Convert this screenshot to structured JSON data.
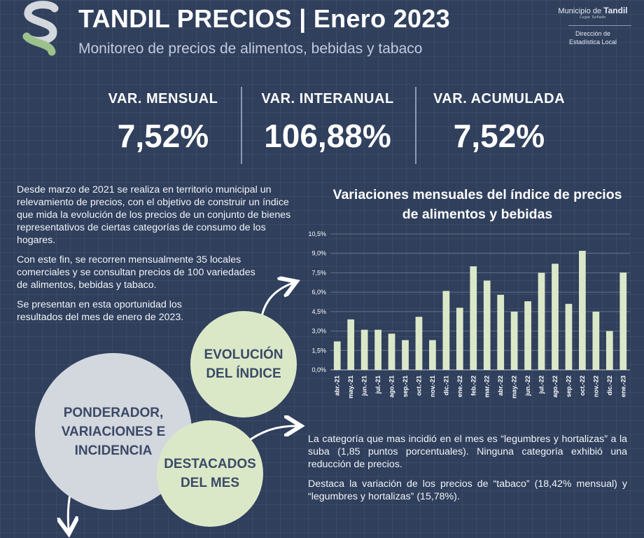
{
  "header": {
    "title": "TANDIL PRECIOS | Enero 2023",
    "subtitle": "Monitoreo de precios de alimentos, bebidas y tabaco"
  },
  "municipality": {
    "name_prefix": "Municipio de",
    "name_main": "Tandil",
    "tagline": "Lugar Soñado",
    "department_line1": "Dirección de",
    "department_line2": "Estadística Local"
  },
  "kpis": [
    {
      "label": "VAR. MENSUAL",
      "value": "7,52%"
    },
    {
      "label": "VAR. INTERANUAL",
      "value": "106,88%"
    },
    {
      "label": "VAR. ACUMULADA",
      "value": "7,52%"
    }
  ],
  "intro": {
    "p1": "Desde marzo de 2021 se realiza en territorio municipal un relevamiento de precios, con el objetivo de construir un índice que mida la evolución de los precios de un conjunto de bienes representativos de ciertas categorías de consumo de los hogares.",
    "p2": "Con este fin, se recorren mensualmente 35 locales comerciales y se consultan precios de 100 variedades de alimentos, bebidas y tabaco.",
    "p3": "Se presentan en esta oportunidad los resultados del mes de enero de 2023."
  },
  "sections": {
    "evolucion_line1": "EVOLUCIÓN",
    "evolucion_line2": "DEL ÍNDICE",
    "ponderador_line1": "PONDERADOR,",
    "ponderador_line2": "VARIACIONES E",
    "ponderador_line3": "INCIDENCIA",
    "destacados_line1": "DESTACADOS",
    "destacados_line2": "DEL MES"
  },
  "destacados": {
    "p1": "La categoría que mas incidió en el mes es “legumbres y hortalizas” a la suba (1,85 puntos porcentuales). Ninguna categoría exhibió una reducción de precios.",
    "p2": "Destaca la variación de los precios de “tabaco” (18,42% mensual) y “legumbres y hortalizas” (15,78%)."
  },
  "colors": {
    "background": "#2f3f5c",
    "bar": "#dbe8c8",
    "circle_green": "#dbe8c8",
    "circle_grey": "#d3d7de",
    "circle_text": "#3a4a66"
  },
  "chart_data": {
    "type": "bar",
    "title": "Variaciones mensuales del índice de precios de alimentos y bebidas",
    "categories": [
      "abr.-21",
      "may.-21",
      "jun.-21",
      "jul.-21",
      "ago.-21",
      "sep.-21",
      "oct.-21",
      "nov.-21",
      "dic.-21",
      "ene.-22",
      "feb.-22",
      "mar.-22",
      "abr.-22",
      "may.-22",
      "jun.-22",
      "jul.-22",
      "ago.-22",
      "sep.-22",
      "oct.-22",
      "nov.-22",
      "dic.-22",
      "ene.-23"
    ],
    "values": [
      2.2,
      3.9,
      3.1,
      3.1,
      2.8,
      2.3,
      4.1,
      2.3,
      6.1,
      4.8,
      8.0,
      6.9,
      5.8,
      4.5,
      5.3,
      7.5,
      8.2,
      5.1,
      9.2,
      4.5,
      3.0,
      7.52
    ],
    "yticks": [
      "0,0%",
      "1,5%",
      "3,0%",
      "4,5%",
      "6,0%",
      "7,5%",
      "9,0%",
      "10,5%"
    ],
    "ylim": [
      0,
      10.5
    ],
    "grid": true,
    "legend": "none"
  }
}
